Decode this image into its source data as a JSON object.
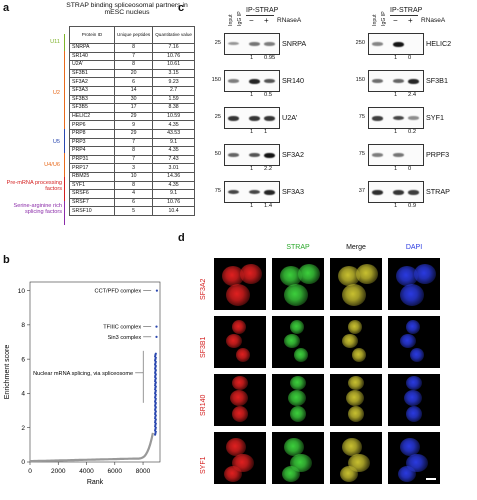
{
  "panel_a": {
    "label": "a",
    "title": "STRAP binding spliceosomal partners in mESC nucleus",
    "headers": [
      "Protein ID",
      "Unique peptides",
      "Quantitative value"
    ],
    "rows": [
      [
        "SNRPA",
        "8",
        "7.16"
      ],
      [
        "SR140",
        "7",
        "10.76"
      ],
      [
        "U2A'",
        "8",
        "10.61"
      ],
      [
        "SF3B1",
        "20",
        "3.15"
      ],
      [
        "SF3A2",
        "6",
        "9.23"
      ],
      [
        "SF3A3",
        "14",
        "2.7"
      ],
      [
        "SF3B3",
        "30",
        "1.59"
      ],
      [
        "SF3B5",
        "17",
        "8.38"
      ],
      [
        "HELIC2",
        "29",
        "10.59"
      ],
      [
        "PRP6",
        "9",
        "4.35"
      ],
      [
        "PRP8",
        "29",
        "43.53"
      ],
      [
        "PRP3",
        "7",
        "9.1"
      ],
      [
        "PRP4",
        "8",
        "4.35"
      ],
      [
        "PRP31",
        "7",
        "7.43"
      ],
      [
        "PRP17",
        "3",
        "3.01"
      ],
      [
        "RBM25",
        "10",
        "14.36"
      ],
      [
        "SYF1",
        "8",
        "4.35"
      ],
      [
        "SRSF6",
        "4",
        "9.1"
      ],
      [
        "SRSF7",
        "6",
        "10.76"
      ],
      [
        "SRSF10",
        "5",
        "10.4"
      ]
    ],
    "groups": [
      {
        "name": "U11",
        "color": "#7fb32a"
      },
      {
        "name": "U2",
        "color": "#e86a1c"
      },
      {
        "name": "U5",
        "color": "#2b48b0"
      },
      {
        "name": "U4/U6",
        "color": "#e86a1c"
      },
      {
        "name": "Pre-mRNA processing factors",
        "color": "#d42020"
      },
      {
        "name": "Serine-arginine rich splicing factors",
        "color": "#8a2ba8"
      }
    ]
  },
  "panel_b": {
    "label": "b",
    "chart_data": {
      "type": "scatter",
      "xlabel": "Rank",
      "ylabel": "Enrichment score",
      "xlim": [
        0,
        9200
      ],
      "ylim": [
        0,
        10.5
      ],
      "xticks": [
        "0",
        "2000",
        "4000",
        "6000",
        "8000"
      ],
      "yticks": [
        "0",
        "2",
        "4",
        "6",
        "8",
        "10"
      ],
      "annotations": [
        {
          "text": "CCT/PFD complex",
          "x": 9000,
          "y": 10.0
        },
        {
          "text": "TFIIIC complex",
          "x": 9000,
          "y": 7.9
        },
        {
          "text": "Sin3 complex",
          "x": 9000,
          "y": 7.3
        },
        {
          "text": "Nuclear mRNA splicing, via spliceosome",
          "x": 9000,
          "y": 5.2
        }
      ],
      "highlight_color": "#2b48b0",
      "base_color": "#999999"
    }
  },
  "panel_c": {
    "label": "c",
    "header_left": {
      "input": "Input",
      "igg": "IgG IP",
      "ip": "IP-STRAP",
      "rnase": "RNaseA",
      "minus": "−",
      "plus": "+"
    },
    "header_right": {
      "input": "Input",
      "igg": "IgG IP",
      "ip": "IP-STRAP",
      "rnase": "RNaseA",
      "minus": "−",
      "plus": "+"
    },
    "left_blots": [
      {
        "name": "SNRPA",
        "mw": "25",
        "nums": [
          "1",
          "0.95"
        ]
      },
      {
        "name": "SR140",
        "mw": "150",
        "nums": [
          "1",
          "0.5"
        ]
      },
      {
        "name": "U2A'",
        "mw": "25",
        "nums": [
          "1",
          "1"
        ]
      },
      {
        "name": "SF3A2",
        "mw": "50",
        "nums": [
          "1",
          "2.2"
        ]
      },
      {
        "name": "SF3A3",
        "mw": "75",
        "nums": [
          "1",
          "1.4"
        ]
      }
    ],
    "right_blots": [
      {
        "name": "HELIC2",
        "mw": "250",
        "nums": [
          "1",
          "0"
        ]
      },
      {
        "name": "SF3B1",
        "mw": "150",
        "nums": [
          "1",
          "2.4"
        ]
      },
      {
        "name": "SYF1",
        "mw": "75",
        "nums": [
          "1",
          "0.2"
        ]
      },
      {
        "name": "PRPF3",
        "mw": "75",
        "nums": [
          "1",
          "0"
        ]
      },
      {
        "name": "STRAP",
        "mw": "37",
        "nums": [
          "1",
          "0.9"
        ]
      }
    ]
  },
  "panel_d": {
    "label": "d",
    "columns": [
      "",
      "STRAP",
      "Merge",
      "DAPI"
    ],
    "rows": [
      "SF3A2",
      "SF3B1",
      "SR140",
      "SYF1"
    ],
    "colors": {
      "red": "#e02020",
      "green": "#3ccf3c",
      "merge": "#c8c030",
      "blue": "#2a3ae0"
    }
  }
}
